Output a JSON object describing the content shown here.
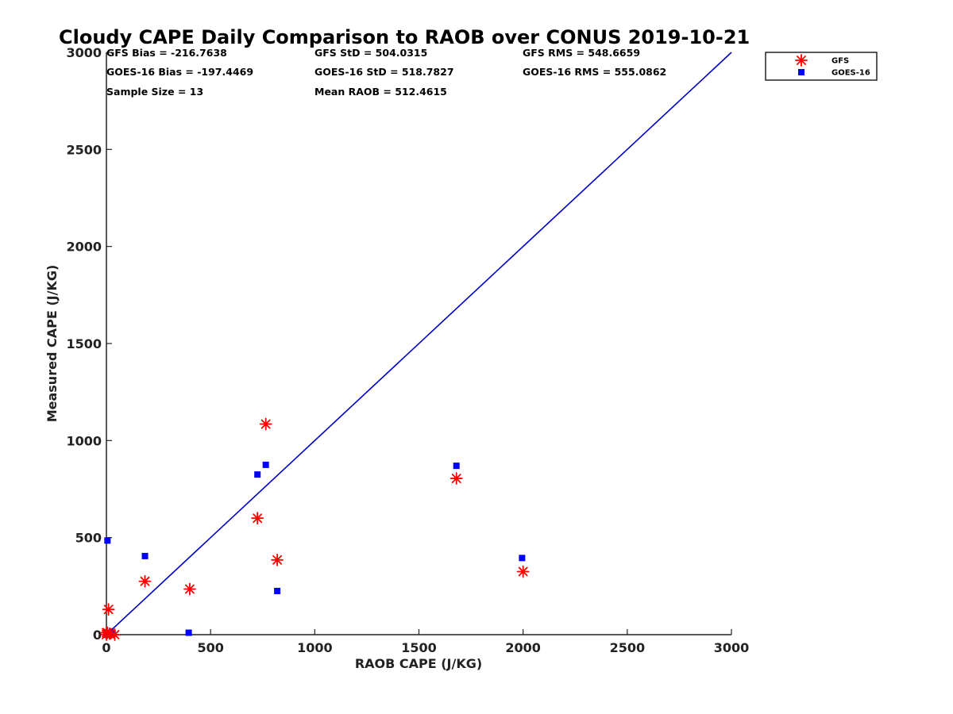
{
  "chart_data": {
    "type": "scatter",
    "title": "Cloudy CAPE Daily Comparison to RAOB over CONUS 2019-10-21",
    "xlabel": "RAOB CAPE (J/KG)",
    "ylabel": "Measured CAPE (J/KG)",
    "xlim": [
      0,
      3000
    ],
    "ylim": [
      0,
      3000
    ],
    "xticks": [
      "0",
      "500",
      "1000",
      "1500",
      "2000",
      "2500",
      "3000"
    ],
    "yticks": [
      "0",
      "500",
      "1000",
      "1500",
      "2000",
      "2500",
      "3000"
    ],
    "grid": false,
    "legend_position": "top-right",
    "reference_line": {
      "from": [
        0,
        0
      ],
      "to": [
        3000,
        3000
      ],
      "color": "#0000cc"
    },
    "stats": [
      {
        "text": "GFS Bias = -216.7638"
      },
      {
        "text": "GFS StD = 504.0315"
      },
      {
        "text": "GFS RMS = 548.6659"
      },
      {
        "text": "GOES-16 Bias = -197.4469"
      },
      {
        "text": "GOES-16 StD = 518.7827"
      },
      {
        "text": "GOES-16 RMS = 555.0862"
      },
      {
        "text": "Sample Size = 13"
      },
      {
        "text": "Mean RAOB = 512.4615"
      }
    ],
    "series": [
      {
        "name": "GFS",
        "marker": "asterisk",
        "color": "#ff0000",
        "points": [
          [
            0,
            0
          ],
          [
            5,
            10
          ],
          [
            10,
            130
          ],
          [
            15,
            5
          ],
          [
            40,
            0
          ],
          [
            185,
            275
          ],
          [
            400,
            235
          ],
          [
            725,
            600
          ],
          [
            765,
            1085
          ],
          [
            820,
            385
          ],
          [
            1680,
            805
          ],
          [
            2000,
            325
          ],
          [
            0,
            10
          ]
        ]
      },
      {
        "name": "GOES-16",
        "marker": "square",
        "color": "#0000ff",
        "points": [
          [
            0,
            0
          ],
          [
            5,
            485
          ],
          [
            10,
            5
          ],
          [
            20,
            0
          ],
          [
            30,
            5
          ],
          [
            185,
            405
          ],
          [
            395,
            10
          ],
          [
            725,
            825
          ],
          [
            765,
            875
          ],
          [
            820,
            225
          ],
          [
            1680,
            870
          ],
          [
            1995,
            395
          ],
          [
            0,
            10
          ]
        ]
      }
    ]
  }
}
